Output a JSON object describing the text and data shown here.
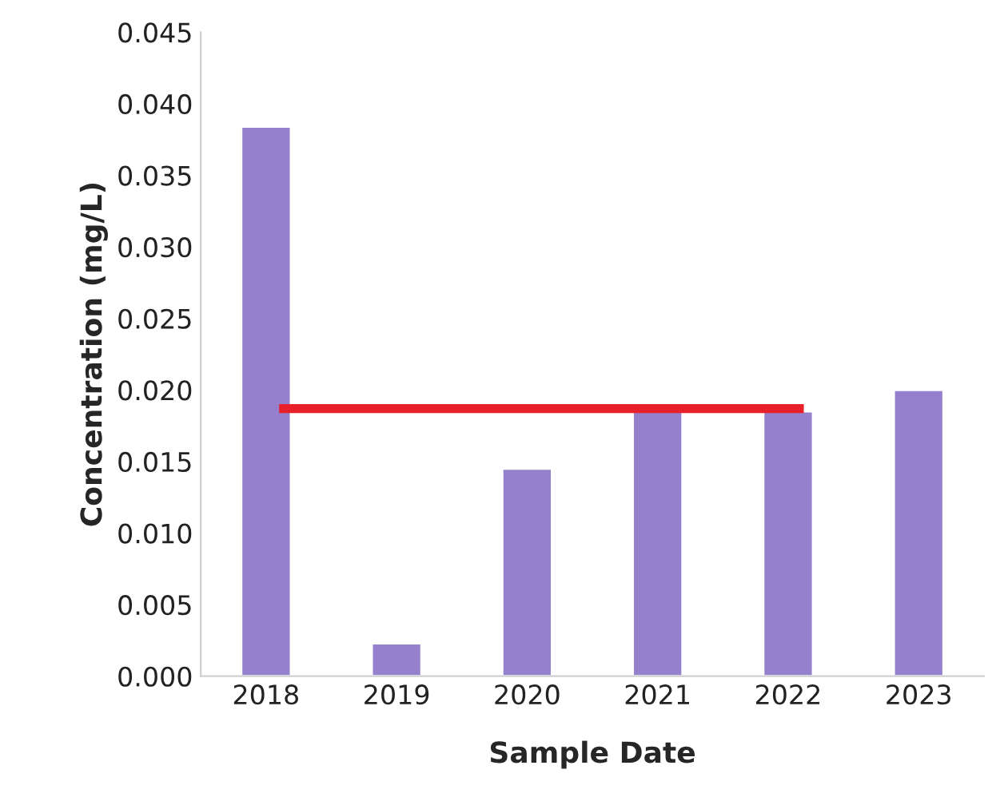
{
  "chart_data": {
    "type": "bar",
    "xlabel": "Sample Date",
    "ylabel": "Concentration (mg/L)",
    "categories": [
      "2018",
      "2019",
      "2020",
      "2021",
      "2022",
      "2023"
    ],
    "values": [
      0.0384,
      0.0023,
      0.0145,
      0.0186,
      0.0185,
      0.02
    ],
    "color": "#9480cc",
    "ylim": [
      0,
      0.045
    ],
    "yticks": [
      {
        "value": 0,
        "label": "0.000"
      },
      {
        "value": 0.005,
        "label": "0.005"
      },
      {
        "value": 0.01,
        "label": "0.010"
      },
      {
        "value": 0.015,
        "label": "0.015"
      },
      {
        "value": 0.02,
        "label": "0.020"
      },
      {
        "value": 0.025,
        "label": "0.025"
      },
      {
        "value": 0.03,
        "label": "0.030"
      },
      {
        "value": 0.035,
        "label": "0.035"
      },
      {
        "value": 0.04,
        "label": "0.040"
      },
      {
        "value": 0.045,
        "label": "0.045"
      }
    ],
    "ref_lines": [
      {
        "axis": "y",
        "value": 0.0187,
        "color": "#e8202a"
      }
    ]
  }
}
